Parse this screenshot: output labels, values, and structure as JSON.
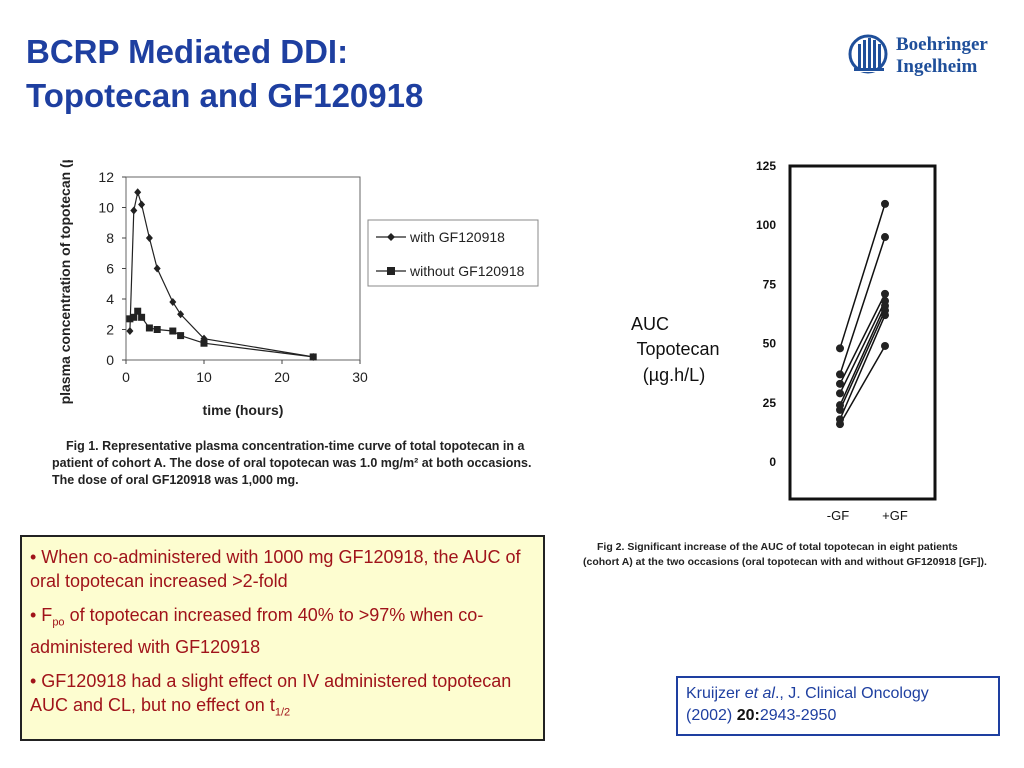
{
  "slide": {
    "title_line1": "BCRP Mediated DDI:",
    "title_line2": "Topotecan and GF120918",
    "logo_line1": "Boehringer",
    "logo_line2": "Ingelheim",
    "brand_color": "#1e3fa0",
    "bullet_color": "#a0131a"
  },
  "bullets": [
    {
      "text": "• When co-administered with 1000 mg GF120918, the AUC of oral topotecan increased >2-fold"
    },
    {
      "prefix": "• F",
      "sub": "po",
      "suffix": " of topotecan increased from 40% to >97% when co-administered with GF120918"
    },
    {
      "prefix": "• GF120918 had a slight effect on IV administered topotecan AUC and CL, but no effect on t",
      "sub": "1/2",
      "suffix": ""
    }
  ],
  "reference": {
    "author": "Kruijzer ",
    "etal": "et al",
    "journal": "., J. Clinical Oncology",
    "year": "(2002) ",
    "volume": "20:",
    "pages": "2943-2950"
  },
  "chart_data": [
    {
      "type": "line",
      "title": "",
      "xlabel": "time (hours)",
      "ylabel": "plasma concentration of topotecan (µg/L)",
      "xlim": [
        0,
        30
      ],
      "ylim": [
        0,
        12
      ],
      "xticks": [
        0,
        10,
        20,
        30
      ],
      "yticks": [
        0,
        2,
        4,
        6,
        8,
        10,
        12
      ],
      "legend_position": "right",
      "series": [
        {
          "name": "with GF120918",
          "marker": "diamond",
          "x": [
            0.5,
            1,
            1.5,
            2,
            3,
            4,
            6,
            7,
            10,
            24
          ],
          "y": [
            1.9,
            9.8,
            11.0,
            10.2,
            8.0,
            6.0,
            3.8,
            3.0,
            1.4,
            0.2
          ]
        },
        {
          "name": "without GF120918",
          "marker": "square",
          "x": [
            0.5,
            1,
            1.5,
            2,
            3,
            4,
            6,
            7,
            10,
            24
          ],
          "y": [
            2.7,
            2.8,
            3.2,
            2.8,
            2.1,
            2.0,
            1.9,
            1.6,
            1.1,
            0.2
          ]
        }
      ],
      "caption": "Fig 1.    Representative plasma concentration-time curve of total topotecan in a patient of cohort A. The dose of oral topotecan was 1.0 mg/m² at both occasions. The dose of oral GF120918 was 1,000 mg."
    },
    {
      "type": "scatter",
      "title": "",
      "ylabel_lines": [
        "AUC",
        "Topotecan",
        "(µg.h/L)"
      ],
      "categories": [
        "-GF",
        "+GF"
      ],
      "ylim": [
        0,
        125
      ],
      "yticks": [
        0,
        25,
        50,
        75,
        100,
        125
      ],
      "pairs": [
        {
          "minus": 48,
          "plus": 109
        },
        {
          "minus": 37,
          "plus": 95
        },
        {
          "minus": 33,
          "plus": 71
        },
        {
          "minus": 29,
          "plus": 68
        },
        {
          "minus": 24,
          "plus": 66
        },
        {
          "minus": 22,
          "plus": 64
        },
        {
          "minus": 18,
          "plus": 62
        },
        {
          "minus": 16,
          "plus": 49
        }
      ],
      "caption": "Fig 2.    Significant increase of the AUC of total topotecan in eight patients (cohort A) at the two occasions (oral topotecan with and without GF120918 [GF])."
    }
  ]
}
